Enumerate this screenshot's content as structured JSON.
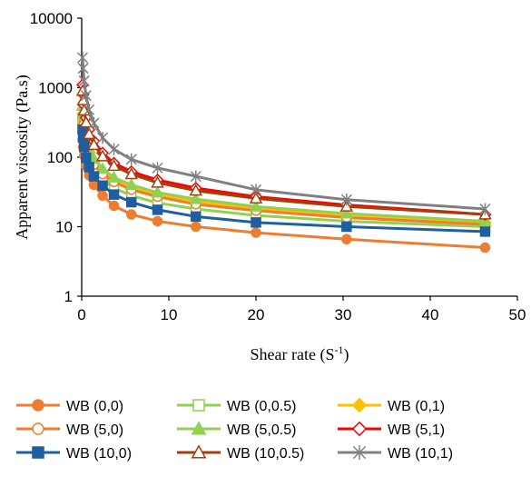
{
  "chart_data": {
    "type": "line",
    "xlabel": "Shear rate (S⁻¹)",
    "ylabel": "Apparent viscosity (Pa.s)",
    "xlim": [
      0,
      50
    ],
    "ylim": [
      1,
      10000
    ],
    "yscale": "log",
    "x_ticks": [
      "0",
      "10",
      "20",
      "30",
      "40",
      "50"
    ],
    "y_ticks": [
      "1",
      "10",
      "100",
      "1000",
      "10000"
    ],
    "grid": false,
    "legend_position": "bottom",
    "x": [
      0.1,
      0.17,
      0.28,
      0.5,
      0.85,
      1.4,
      2.4,
      3.7,
      5.7,
      8.7,
      13.1,
      20.0,
      30.4,
      46.3
    ],
    "series": [
      {
        "name": "WB (0,0)",
        "color": "#ED7D31",
        "marker": "circle",
        "filled": true,
        "values": [
          180,
          140,
          105,
          75,
          55,
          40,
          28,
          20,
          15,
          12,
          10,
          8.2,
          6.6,
          5.0
        ]
      },
      {
        "name": "WB (0,0.5)",
        "color": "#92D050",
        "marker": "square",
        "filled": false,
        "values": [
          320,
          240,
          175,
          120,
          88,
          65,
          47,
          36,
          28,
          22,
          18,
          14.5,
          12,
          10
        ]
      },
      {
        "name": "WB (0,1)",
        "color": "#FFC000",
        "marker": "diamond",
        "filled": true,
        "values": [
          420,
          320,
          230,
          160,
          115,
          85,
          62,
          47,
          37,
          29,
          23,
          18,
          14.5,
          11.5
        ]
      },
      {
        "name": "WB (5,0)",
        "color": "#ED7D31",
        "marker": "circle",
        "filled": false,
        "values": [
          380,
          290,
          210,
          145,
          105,
          78,
          57,
          44,
          34,
          27,
          21,
          17,
          13.5,
          10.8
        ]
      },
      {
        "name": "WB (5,0.5)",
        "color": "#92D050",
        "marker": "triangle",
        "filled": true,
        "values": [
          550,
          400,
          290,
          195,
          135,
          95,
          68,
          51,
          40,
          31,
          25,
          19.5,
          15.5,
          12
        ]
      },
      {
        "name": "WB (5,1)",
        "color": "#FF0000",
        "marker": "diamond",
        "filled": false,
        "values": [
          1100,
          800,
          560,
          370,
          250,
          170,
          115,
          82,
          62,
          47,
          36,
          27,
          20.5,
          15
        ]
      },
      {
        "name": "WB (10,0)",
        "color": "#1F5F9F",
        "marker": "square",
        "filled": true,
        "values": [
          250,
          190,
          140,
          98,
          72,
          53,
          39,
          29,
          22.5,
          17.5,
          14,
          11.5,
          10,
          8.5
        ]
      },
      {
        "name": "WB (10,0.5)",
        "color": "#A0410D",
        "marker": "triangle",
        "filled": false,
        "values": [
          900,
          660,
          470,
          315,
          215,
          150,
          103,
          75,
          57,
          43,
          33,
          25.5,
          19.5,
          15
        ]
      },
      {
        "name": "WB (10,1)",
        "color": "#808080",
        "marker": "star",
        "filled": false,
        "values": [
          2700,
          1900,
          1250,
          770,
          480,
          310,
          190,
          130,
          93,
          70,
          53,
          34,
          24.5,
          18
        ]
      }
    ]
  }
}
